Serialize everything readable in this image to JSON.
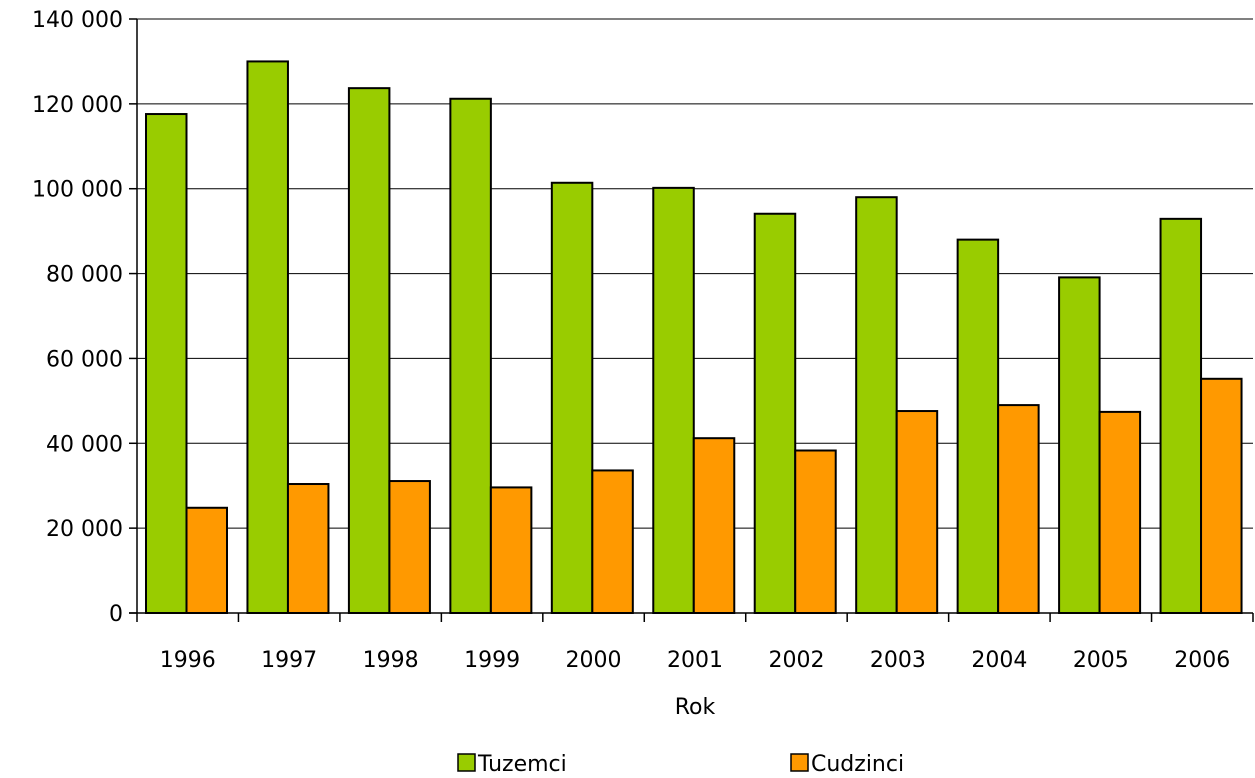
{
  "chart_data": {
    "type": "bar",
    "title": "",
    "xlabel": "Rok",
    "ylabel": "",
    "categories": [
      "1996",
      "1997",
      "1998",
      "1999",
      "2000",
      "2001",
      "2002",
      "2003",
      "2004",
      "2005",
      "2006"
    ],
    "series": [
      {
        "name": "Tuzemci",
        "color": "#99CC00",
        "values": [
          117600,
          130000,
          123700,
          121200,
          101400,
          100200,
          94100,
          98000,
          88000,
          79100,
          92900
        ]
      },
      {
        "name": "Cudzinci",
        "color": "#FF9900",
        "values": [
          24800,
          30400,
          31100,
          29600,
          33600,
          41200,
          38300,
          47600,
          49000,
          47400,
          55200
        ]
      }
    ],
    "ylim": [
      0,
      140000
    ],
    "yticks": [
      0,
      20000,
      40000,
      60000,
      80000,
      100000,
      120000,
      140000
    ],
    "ytick_labels": [
      "0",
      "20 000",
      "40 000",
      "60 000",
      "80 000",
      "100 000",
      "120 000",
      "140 000"
    ],
    "grid": "horizontal",
    "legend": "bottom"
  }
}
